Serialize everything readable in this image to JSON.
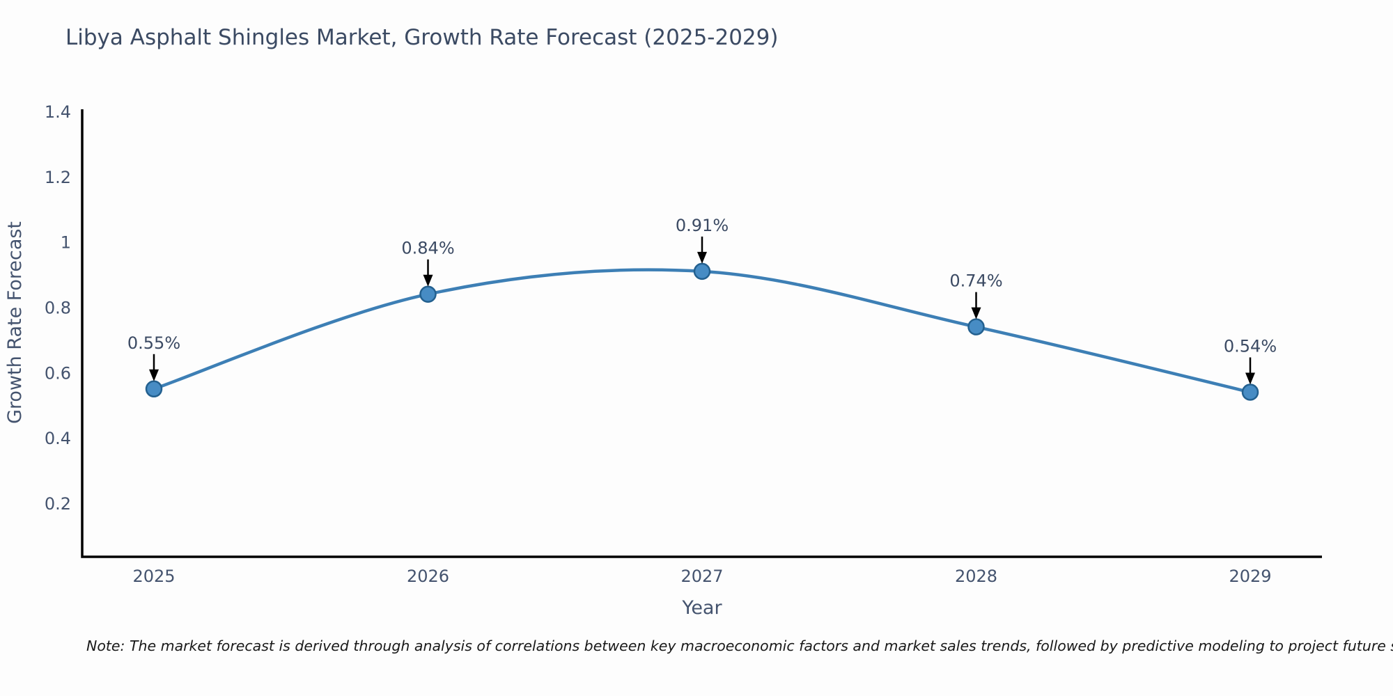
{
  "page": {
    "background": "#fdfdfd"
  },
  "footer": {
    "note": "Note: The market forecast is derived through analysis of correlations between key macroeconomic factors and market sales trends, followed by predictive modeling to project future sales"
  },
  "colors": {
    "title_text": "#3b4a63",
    "tick_text": "#44536e",
    "annotation_text": "#3b4a63",
    "axis": "#000000",
    "arrow": "#000000",
    "line": "#3d7fb5",
    "marker_fill": "#478cc4",
    "marker_edge": "#23608f",
    "note_text": "#191919"
  },
  "chart_data": {
    "type": "line",
    "title": "Libya Asphalt Shingles Market, Growth Rate Forecast (2025-2029)",
    "categories": [
      "2025",
      "2026",
      "2027",
      "2028",
      "2029"
    ],
    "values": [
      0.55,
      0.84,
      0.91,
      0.74,
      0.54
    ],
    "point_labels": [
      "0.55%",
      "0.84%",
      "0.91%",
      "0.74%",
      "0.54%"
    ],
    "xlabel": "Year",
    "ylabel": "Growth Rate Forecast",
    "ylim": [
      0.03,
      1.41
    ],
    "ytick_values": [
      0.2,
      0.4,
      0.6,
      0.8,
      1.0,
      1.2,
      1.4
    ],
    "ytick_labels": [
      "0.2",
      "0.4",
      "0.6",
      "0.8",
      "1",
      "1.2",
      "1.4"
    ],
    "grid": false,
    "legend": "none",
    "line_style": "smooth-spline",
    "marker": "circle",
    "annotation_style": "arrow-down-to-point"
  }
}
